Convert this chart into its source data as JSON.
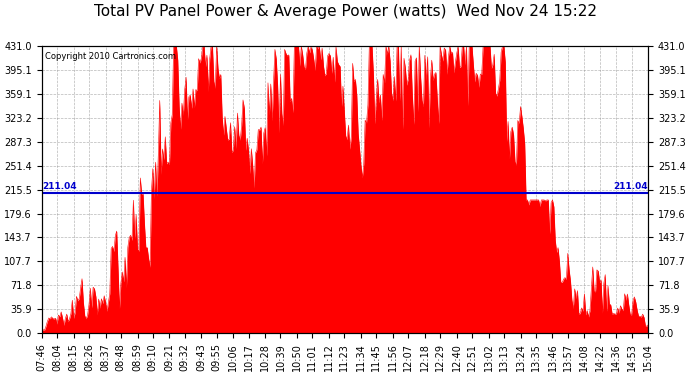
{
  "title": "Total PV Panel Power & Average Power (watts)  Wed Nov 24 15:22",
  "copyright": "Copyright 2010 Cartronics.com",
  "average_power": 211.04,
  "y_max": 431.0,
  "y_ticks": [
    0.0,
    35.9,
    71.8,
    107.7,
    143.7,
    179.6,
    215.5,
    251.4,
    287.3,
    323.2,
    359.1,
    395.1,
    431.0
  ],
  "bar_color": "#ff0000",
  "avg_line_color": "#0000cc",
  "background_color": "#ffffff",
  "plot_bg_color": "#ffffff",
  "grid_color": "#888888",
  "x_labels": [
    "07:46",
    "08:04",
    "08:15",
    "08:26",
    "08:37",
    "08:48",
    "08:59",
    "09:10",
    "09:21",
    "09:32",
    "09:43",
    "09:55",
    "10:06",
    "10:17",
    "10:28",
    "10:39",
    "10:50",
    "11:01",
    "11:12",
    "11:23",
    "11:34",
    "11:45",
    "11:56",
    "12:07",
    "12:18",
    "12:29",
    "12:40",
    "12:51",
    "13:02",
    "13:13",
    "13:24",
    "13:35",
    "13:46",
    "13:57",
    "14:08",
    "14:22",
    "14:36",
    "14:53",
    "15:04"
  ],
  "title_fontsize": 11,
  "tick_fontsize": 7
}
